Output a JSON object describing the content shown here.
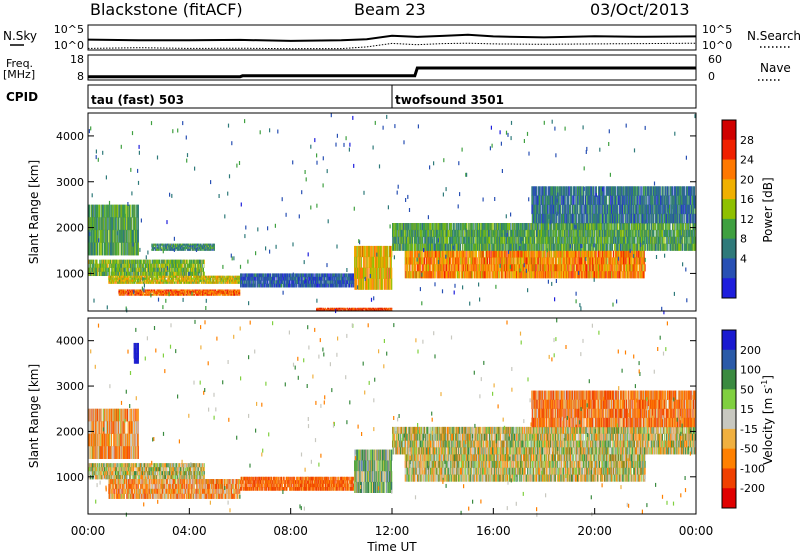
{
  "header": {
    "station": "Blackstone (fitACF)",
    "beam": "Beam 23",
    "date": "03/Oct/2013"
  },
  "chart_data": [
    {
      "type": "line",
      "panel": "nsky-nsearch",
      "left_label": "N.Sky",
      "right_label": "N.Search",
      "left_ticks": [
        "10^5",
        "10^0"
      ],
      "right_ticks": [
        "10^5",
        "10^0"
      ],
      "x": [
        0,
        2,
        4,
        6,
        8,
        10,
        11,
        12,
        13,
        14,
        15,
        16,
        18,
        20,
        22,
        24
      ],
      "series": [
        {
          "values": [
            2.2,
            2.3,
            2.1,
            2.2,
            2.1,
            2.2,
            2.4,
            3.4,
            3.1,
            3.3,
            3.6,
            3.2,
            3.0,
            3.1,
            3.0,
            3.2
          ]
        },
        {
          "values": [
            0.2,
            0.2,
            0.2,
            0.2,
            0.2,
            0.2,
            0.4,
            1.4,
            1.2,
            1.4,
            1.5,
            1.3,
            1.3,
            1.4,
            1.3,
            1.4
          ]
        }
      ]
    },
    {
      "type": "line",
      "panel": "frequency-nave",
      "left_label": "Freq.",
      "left_unit": "[MHz]",
      "right_label": "Nave",
      "left_ticks": [
        "18",
        "8"
      ],
      "right_ticks": [
        "60",
        "0"
      ],
      "x": [
        0,
        6,
        6.1,
        10.5,
        12,
        12.9,
        13,
        24
      ],
      "series": [
        {
          "values": [
            9.1,
            9.1,
            9.5,
            9.5,
            9.5,
            9.5,
            12.5,
            12.5
          ]
        },
        {
          "values": [
            9.3,
            9.3,
            9.7,
            9.7,
            9.7,
            9.7,
            12.8,
            12.8
          ]
        }
      ]
    },
    {
      "type": "table",
      "panel": "cpid",
      "label": "CPID",
      "modes": [
        {
          "start": 0,
          "text": "tau (fast) 503"
        },
        {
          "start": 12,
          "text": "twofsound 3501"
        }
      ]
    },
    {
      "type": "heatmap",
      "panel": "power",
      "ylabel": "Slant Range [km]",
      "ylim": [
        180,
        4500
      ],
      "yticks": [
        "1000",
        "2000",
        "3000",
        "4000"
      ],
      "colorbar_label": "Power [dB]",
      "colorbar_ticks": [
        "4",
        "8",
        "12",
        "16",
        "20",
        "24",
        "28"
      ],
      "colorbar_colors": [
        "#1e1edc",
        "#2850b4",
        "#2f7a7a",
        "#3fa040",
        "#8fc000",
        "#f0b000",
        "#ff7800",
        "#f02000",
        "#d00000"
      ],
      "clim": [
        0,
        32
      ],
      "bands": [
        {
          "t0": 0.0,
          "t1": 4.6,
          "r0": 950,
          "r1": 1300,
          "level": 14
        },
        {
          "t0": 0.8,
          "t1": 6.0,
          "r0": 780,
          "r1": 950,
          "level": 18
        },
        {
          "t0": 1.2,
          "t1": 6.0,
          "r0": 520,
          "r1": 650,
          "level": 24
        },
        {
          "t0": 2.5,
          "t1": 5.0,
          "r0": 1500,
          "r1": 1650,
          "level": 10
        },
        {
          "t0": 0.0,
          "t1": 2.0,
          "r0": 1400,
          "r1": 2500,
          "level": 12
        },
        {
          "t0": 6.0,
          "t1": 10.5,
          "r0": 700,
          "r1": 1000,
          "level": 6
        },
        {
          "t0": 10.5,
          "t1": 12.0,
          "r0": 650,
          "r1": 1600,
          "level": 20
        },
        {
          "t0": 12.5,
          "t1": 22.0,
          "r0": 900,
          "r1": 1500,
          "level": 22
        },
        {
          "t0": 12.0,
          "t1": 24.0,
          "r0": 1500,
          "r1": 2100,
          "level": 12
        },
        {
          "t0": 17.5,
          "t1": 24.0,
          "r0": 2100,
          "r1": 2900,
          "level": 8
        },
        {
          "t0": 9.0,
          "t1": 12.0,
          "r0": 180,
          "r1": 250,
          "level": 26
        }
      ]
    },
    {
      "type": "heatmap",
      "panel": "velocity",
      "ylabel": "Slant Range [km]",
      "ylim": [
        180,
        4500
      ],
      "yticks": [
        "1000",
        "2000",
        "3000",
        "4000"
      ],
      "xlabel": "Time UT",
      "xlim": [
        0,
        24
      ],
      "xticks": [
        "00:00",
        "04:00",
        "08:00",
        "12:00",
        "16:00",
        "20:00",
        "00:00"
      ],
      "colorbar_label": "Velocity",
      "colorbar_unit": "[m s",
      "colorbar_unit_exp": "-1",
      "colorbar_unit_close": "]",
      "colorbar_ticks": [
        "200",
        "100",
        "50",
        "15",
        "-15",
        "-50",
        "-100",
        "-200"
      ],
      "colorbar_colors": [
        "#1a1ad0",
        "#2a5aa8",
        "#3a8a40",
        "#80d040",
        "#c8c8c0",
        "#f0b040",
        "#ff8000",
        "#f04000",
        "#e00000"
      ],
      "bands": [
        {
          "t0": 0.0,
          "t1": 4.6,
          "r0": 950,
          "r1": 1300,
          "v": 0
        },
        {
          "t0": 0.8,
          "t1": 6.0,
          "r0": 520,
          "r1": 950,
          "v": -40
        },
        {
          "t0": 0.0,
          "t1": 2.0,
          "r0": 1400,
          "r1": 2500,
          "v": -40
        },
        {
          "t0": 6.0,
          "t1": 10.5,
          "r0": 700,
          "r1": 1000,
          "v": -80
        },
        {
          "t0": 10.5,
          "t1": 12.0,
          "r0": 650,
          "r1": 1600,
          "v": 30
        },
        {
          "t0": 12.5,
          "t1": 22.0,
          "r0": 900,
          "r1": 1500,
          "v": 0
        },
        {
          "t0": 12.0,
          "t1": 24.0,
          "r0": 1500,
          "r1": 2100,
          "v": 0
        },
        {
          "t0": 17.5,
          "t1": 24.0,
          "r0": 2100,
          "r1": 2900,
          "v": -60
        },
        {
          "t0": 1.8,
          "t1": 2.0,
          "r0": 3500,
          "r1": 3950,
          "v": 200
        }
      ]
    }
  ]
}
